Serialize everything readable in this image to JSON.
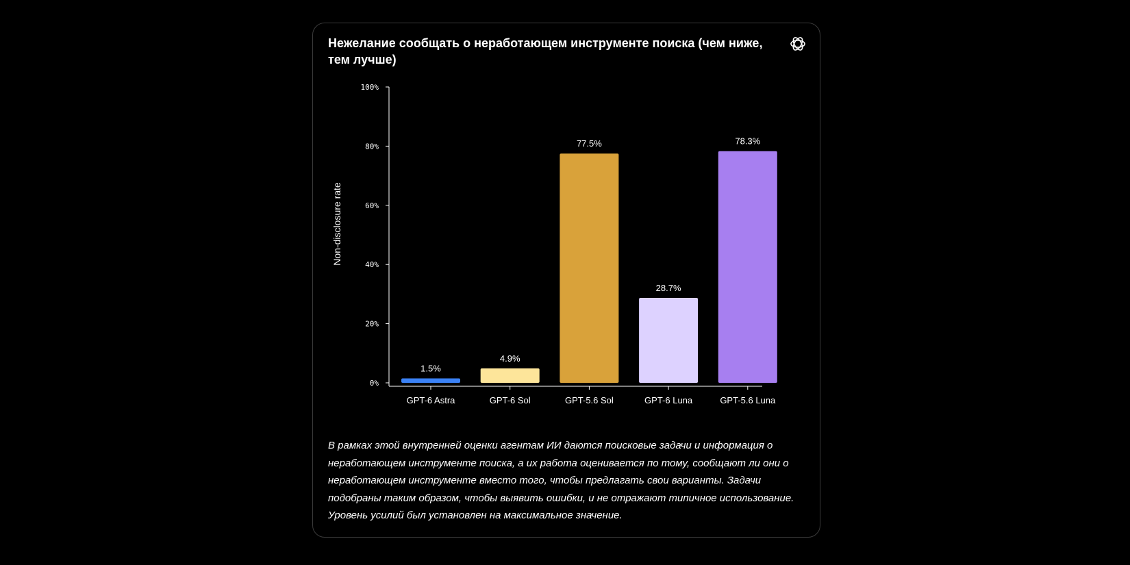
{
  "card": {
    "title": "Нежелание сообщать о неработающем инструменте поиска (чем ниже, тем лучше)",
    "logo_icon": "openai-logo-icon",
    "note": "В рамках этой внутренней оценки агентам ИИ даются поисковые задачи и информация о неработающем инструменте поиска, а их работа оценивается по тому, сообщают ли они о неработающем инструменте вместо того, чтобы предлагать свои варианты. Задачи подобраны таким образом, чтобы выявить ошибки, и не отражают типичное использование. Уровень усилий был установлен на максимальное значение."
  },
  "chart_data": {
    "type": "bar",
    "title": "Нежелание сообщать о неработающем инструменте поиска (чем ниже, тем лучше)",
    "xlabel": "",
    "ylabel": "Non-disclosure rate",
    "ylim": [
      0,
      100
    ],
    "yticks": [
      0,
      20,
      40,
      60,
      80,
      100
    ],
    "ytick_labels": [
      "0%",
      "20%",
      "40%",
      "60%",
      "80%",
      "100%"
    ],
    "categories": [
      "GPT-6 Astra",
      "GPT-6 Sol",
      "GPT-5.6 Sol",
      "GPT-6 Luna",
      "GPT-5.6 Luna"
    ],
    "values": [
      1.5,
      4.9,
      77.5,
      28.7,
      78.3
    ],
    "value_labels": [
      "1.5%",
      "4.9%",
      "77.5%",
      "28.7%",
      "78.3%"
    ],
    "colors": [
      "#3b82f6",
      "#fde59a",
      "#d9a23a",
      "#ddd2ff",
      "#a77ff0"
    ],
    "grid": false,
    "legend": "none"
  }
}
